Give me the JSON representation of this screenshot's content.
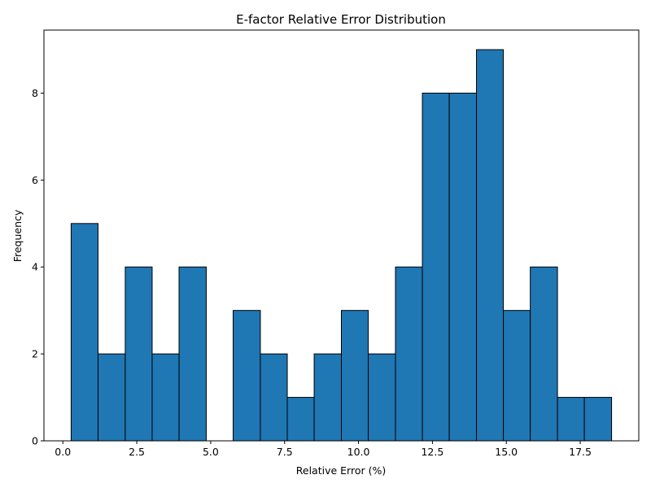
{
  "chart_data": {
    "type": "bar",
    "title": "E-factor Relative Error Distribution",
    "xlabel": "Relative Error (%)",
    "ylabel": "Frequency",
    "bin_edges": [
      0.28,
      1.19,
      2.11,
      3.02,
      3.93,
      4.85,
      5.76,
      6.68,
      7.59,
      8.5,
      9.42,
      10.33,
      11.25,
      12.16,
      13.07,
      13.99,
      14.9,
      15.81,
      16.73,
      17.64,
      18.56
    ],
    "values": [
      5,
      2,
      4,
      2,
      4,
      0,
      3,
      2,
      1,
      2,
      3,
      2,
      4,
      8,
      8,
      9,
      3,
      4,
      1,
      1
    ],
    "xlim": [
      -0.64,
      19.48
    ],
    "ylim": [
      0,
      9.45
    ],
    "xticks": [
      0.0,
      2.5,
      5.0,
      7.5,
      10.0,
      12.5,
      15.0,
      17.5
    ],
    "xtick_labels": [
      "0.0",
      "2.5",
      "5.0",
      "7.5",
      "10.0",
      "12.5",
      "15.0",
      "17.5"
    ],
    "yticks": [
      0,
      2,
      4,
      6,
      8
    ],
    "ytick_labels": [
      "0",
      "2",
      "4",
      "6",
      "8"
    ],
    "bar_color": "#1f77b4",
    "edge_color": "#000000",
    "grid": false,
    "legend": "none"
  }
}
